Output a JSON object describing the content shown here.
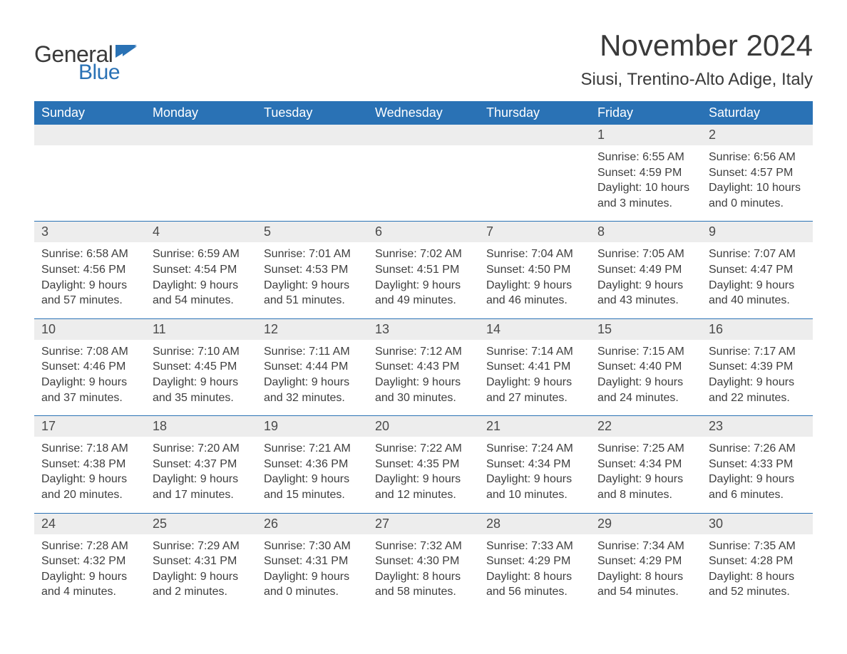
{
  "logo": {
    "general": "General",
    "blue": "Blue"
  },
  "title": "November 2024",
  "location": "Siusi, Trentino-Alto Adige, Italy",
  "colors": {
    "header_bg": "#2a72b5",
    "header_text": "#ffffff",
    "strip_bg": "#ededed",
    "rule": "#2a72b5",
    "text": "#3a3a3a"
  },
  "weekdays": [
    "Sunday",
    "Monday",
    "Tuesday",
    "Wednesday",
    "Thursday",
    "Friday",
    "Saturday"
  ],
  "weeks": [
    [
      null,
      null,
      null,
      null,
      null,
      {
        "n": "1",
        "sr": "Sunrise: 6:55 AM",
        "ss": "Sunset: 4:59 PM",
        "d1": "Daylight: 10 hours",
        "d2": "and 3 minutes."
      },
      {
        "n": "2",
        "sr": "Sunrise: 6:56 AM",
        "ss": "Sunset: 4:57 PM",
        "d1": "Daylight: 10 hours",
        "d2": "and 0 minutes."
      }
    ],
    [
      {
        "n": "3",
        "sr": "Sunrise: 6:58 AM",
        "ss": "Sunset: 4:56 PM",
        "d1": "Daylight: 9 hours",
        "d2": "and 57 minutes."
      },
      {
        "n": "4",
        "sr": "Sunrise: 6:59 AM",
        "ss": "Sunset: 4:54 PM",
        "d1": "Daylight: 9 hours",
        "d2": "and 54 minutes."
      },
      {
        "n": "5",
        "sr": "Sunrise: 7:01 AM",
        "ss": "Sunset: 4:53 PM",
        "d1": "Daylight: 9 hours",
        "d2": "and 51 minutes."
      },
      {
        "n": "6",
        "sr": "Sunrise: 7:02 AM",
        "ss": "Sunset: 4:51 PM",
        "d1": "Daylight: 9 hours",
        "d2": "and 49 minutes."
      },
      {
        "n": "7",
        "sr": "Sunrise: 7:04 AM",
        "ss": "Sunset: 4:50 PM",
        "d1": "Daylight: 9 hours",
        "d2": "and 46 minutes."
      },
      {
        "n": "8",
        "sr": "Sunrise: 7:05 AM",
        "ss": "Sunset: 4:49 PM",
        "d1": "Daylight: 9 hours",
        "d2": "and 43 minutes."
      },
      {
        "n": "9",
        "sr": "Sunrise: 7:07 AM",
        "ss": "Sunset: 4:47 PM",
        "d1": "Daylight: 9 hours",
        "d2": "and 40 minutes."
      }
    ],
    [
      {
        "n": "10",
        "sr": "Sunrise: 7:08 AM",
        "ss": "Sunset: 4:46 PM",
        "d1": "Daylight: 9 hours",
        "d2": "and 37 minutes."
      },
      {
        "n": "11",
        "sr": "Sunrise: 7:10 AM",
        "ss": "Sunset: 4:45 PM",
        "d1": "Daylight: 9 hours",
        "d2": "and 35 minutes."
      },
      {
        "n": "12",
        "sr": "Sunrise: 7:11 AM",
        "ss": "Sunset: 4:44 PM",
        "d1": "Daylight: 9 hours",
        "d2": "and 32 minutes."
      },
      {
        "n": "13",
        "sr": "Sunrise: 7:12 AM",
        "ss": "Sunset: 4:43 PM",
        "d1": "Daylight: 9 hours",
        "d2": "and 30 minutes."
      },
      {
        "n": "14",
        "sr": "Sunrise: 7:14 AM",
        "ss": "Sunset: 4:41 PM",
        "d1": "Daylight: 9 hours",
        "d2": "and 27 minutes."
      },
      {
        "n": "15",
        "sr": "Sunrise: 7:15 AM",
        "ss": "Sunset: 4:40 PM",
        "d1": "Daylight: 9 hours",
        "d2": "and 24 minutes."
      },
      {
        "n": "16",
        "sr": "Sunrise: 7:17 AM",
        "ss": "Sunset: 4:39 PM",
        "d1": "Daylight: 9 hours",
        "d2": "and 22 minutes."
      }
    ],
    [
      {
        "n": "17",
        "sr": "Sunrise: 7:18 AM",
        "ss": "Sunset: 4:38 PM",
        "d1": "Daylight: 9 hours",
        "d2": "and 20 minutes."
      },
      {
        "n": "18",
        "sr": "Sunrise: 7:20 AM",
        "ss": "Sunset: 4:37 PM",
        "d1": "Daylight: 9 hours",
        "d2": "and 17 minutes."
      },
      {
        "n": "19",
        "sr": "Sunrise: 7:21 AM",
        "ss": "Sunset: 4:36 PM",
        "d1": "Daylight: 9 hours",
        "d2": "and 15 minutes."
      },
      {
        "n": "20",
        "sr": "Sunrise: 7:22 AM",
        "ss": "Sunset: 4:35 PM",
        "d1": "Daylight: 9 hours",
        "d2": "and 12 minutes."
      },
      {
        "n": "21",
        "sr": "Sunrise: 7:24 AM",
        "ss": "Sunset: 4:34 PM",
        "d1": "Daylight: 9 hours",
        "d2": "and 10 minutes."
      },
      {
        "n": "22",
        "sr": "Sunrise: 7:25 AM",
        "ss": "Sunset: 4:34 PM",
        "d1": "Daylight: 9 hours",
        "d2": "and 8 minutes."
      },
      {
        "n": "23",
        "sr": "Sunrise: 7:26 AM",
        "ss": "Sunset: 4:33 PM",
        "d1": "Daylight: 9 hours",
        "d2": "and 6 minutes."
      }
    ],
    [
      {
        "n": "24",
        "sr": "Sunrise: 7:28 AM",
        "ss": "Sunset: 4:32 PM",
        "d1": "Daylight: 9 hours",
        "d2": "and 4 minutes."
      },
      {
        "n": "25",
        "sr": "Sunrise: 7:29 AM",
        "ss": "Sunset: 4:31 PM",
        "d1": "Daylight: 9 hours",
        "d2": "and 2 minutes."
      },
      {
        "n": "26",
        "sr": "Sunrise: 7:30 AM",
        "ss": "Sunset: 4:31 PM",
        "d1": "Daylight: 9 hours",
        "d2": "and 0 minutes."
      },
      {
        "n": "27",
        "sr": "Sunrise: 7:32 AM",
        "ss": "Sunset: 4:30 PM",
        "d1": "Daylight: 8 hours",
        "d2": "and 58 minutes."
      },
      {
        "n": "28",
        "sr": "Sunrise: 7:33 AM",
        "ss": "Sunset: 4:29 PM",
        "d1": "Daylight: 8 hours",
        "d2": "and 56 minutes."
      },
      {
        "n": "29",
        "sr": "Sunrise: 7:34 AM",
        "ss": "Sunset: 4:29 PM",
        "d1": "Daylight: 8 hours",
        "d2": "and 54 minutes."
      },
      {
        "n": "30",
        "sr": "Sunrise: 7:35 AM",
        "ss": "Sunset: 4:28 PM",
        "d1": "Daylight: 8 hours",
        "d2": "and 52 minutes."
      }
    ]
  ]
}
